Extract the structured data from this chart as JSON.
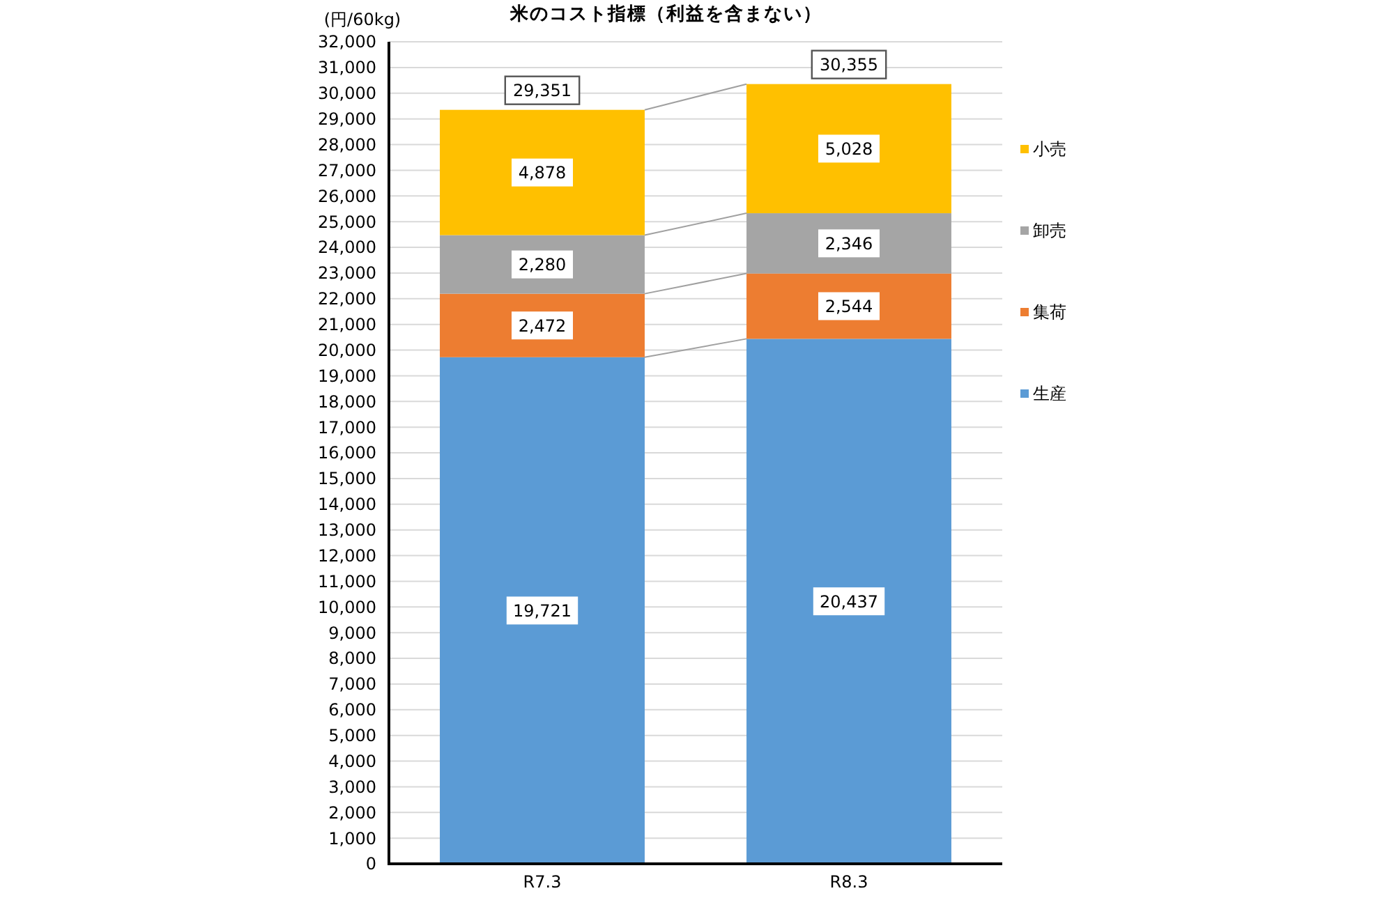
{
  "chart_data": {
    "type": "bar",
    "title": "米のコスト指標（利益を含まない）",
    "ylabel": "(円/60kg)",
    "categories": [
      "R7.3",
      "R8.3"
    ],
    "series": [
      {
        "name": "生産",
        "color": "#5b9bd5",
        "values": [
          19721,
          20437
        ],
        "value_labels": [
          "19,721",
          "20,437"
        ]
      },
      {
        "name": "集荷",
        "color": "#ed7d31",
        "values": [
          2472,
          2544
        ],
        "value_labels": [
          "2,472",
          "2,544"
        ]
      },
      {
        "name": "卸売",
        "color": "#a5a5a5",
        "values": [
          2280,
          2346
        ],
        "value_labels": [
          "2,280",
          "2,346"
        ]
      },
      {
        "name": "小売",
        "color": "#ffc000",
        "values": [
          4878,
          5028
        ],
        "value_labels": [
          "4,878",
          "5,028"
        ]
      }
    ],
    "stacked": true,
    "ylim": [
      0,
      32000
    ],
    "yticks": [
      0,
      {
        "value": 1000,
        "label": "1,000"
      },
      {
        "value": 2000,
        "label": "2,000"
      },
      {
        "value": 3000,
        "label": "3,000"
      },
      {
        "value": 4000,
        "label": "4,000"
      },
      {
        "value": 5000,
        "label": "5,000"
      },
      {
        "value": 6000,
        "label": "6,000"
      },
      {
        "value": 7000,
        "label": "7,000"
      },
      {
        "value": 8000,
        "label": "8,000"
      },
      {
        "value": 9000,
        "label": "9,000"
      },
      {
        "value": 10000,
        "label": "10,000"
      },
      {
        "value": 11000,
        "label": "11,000"
      },
      {
        "value": 12000,
        "label": "12,000"
      },
      {
        "value": 13000,
        "label": "13,000"
      },
      {
        "value": 14000,
        "label": "14,000"
      },
      {
        "value": 15000,
        "label": "15,000"
      },
      {
        "value": 16000,
        "label": "16,000"
      },
      {
        "value": 17000,
        "label": "17,000"
      },
      {
        "value": 18000,
        "label": "18,000"
      },
      {
        "value": 19000,
        "label": "19,000"
      },
      {
        "value": 20000,
        "label": "20,000"
      },
      {
        "value": 21000,
        "label": "21,000"
      },
      {
        "value": 22000,
        "label": "22,000"
      },
      {
        "value": 23000,
        "label": "23,000"
      },
      {
        "value": 24000,
        "label": "24,000"
      },
      {
        "value": 25000,
        "label": "25,000"
      },
      {
        "value": 26000,
        "label": "26,000"
      },
      {
        "value": 27000,
        "label": "27,000"
      },
      {
        "value": 28000,
        "label": "28,000"
      },
      {
        "value": 29000,
        "label": "29,000"
      },
      {
        "value": 30000,
        "label": "30,000"
      },
      {
        "value": 31000,
        "label": "31,000"
      },
      {
        "value": 32000,
        "label": "32,000"
      }
    ],
    "grid": "y",
    "legend": "right",
    "totals": [
      "29,351",
      "30,355"
    ]
  }
}
